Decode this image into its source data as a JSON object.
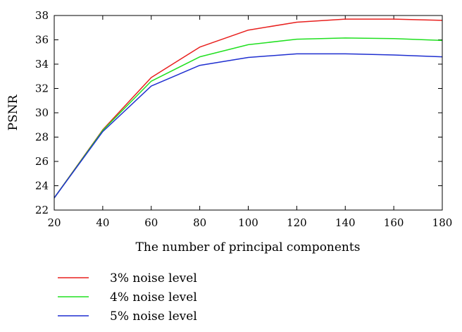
{
  "chart_data": {
    "type": "line",
    "title": "",
    "xlabel": "The number of principal components",
    "ylabel": "PSNR",
    "x": [
      20,
      40,
      60,
      80,
      100,
      120,
      140,
      160,
      180
    ],
    "xlim": [
      20,
      180
    ],
    "ylim": [
      22,
      38
    ],
    "xticks": [
      "20",
      "40",
      "60",
      "80",
      "100",
      "120",
      "140",
      "160",
      "180"
    ],
    "yticks": [
      "22",
      "24",
      "26",
      "28",
      "30",
      "32",
      "34",
      "36",
      "38"
    ],
    "grid": false,
    "legend_position": "below",
    "series": [
      {
        "name": "3% noise level",
        "color": "#e8201e",
        "values": [
          23.0,
          28.6,
          32.9,
          35.4,
          36.8,
          37.45,
          37.7,
          37.7,
          37.6
        ]
      },
      {
        "name": "4% noise level",
        "color": "#20e020",
        "values": [
          23.0,
          28.55,
          32.6,
          34.6,
          35.6,
          36.05,
          36.15,
          36.1,
          35.95
        ]
      },
      {
        "name": "5% noise level",
        "color": "#1f2fd0",
        "values": [
          23.0,
          28.45,
          32.2,
          33.9,
          34.55,
          34.85,
          34.85,
          34.75,
          34.6
        ]
      }
    ]
  }
}
